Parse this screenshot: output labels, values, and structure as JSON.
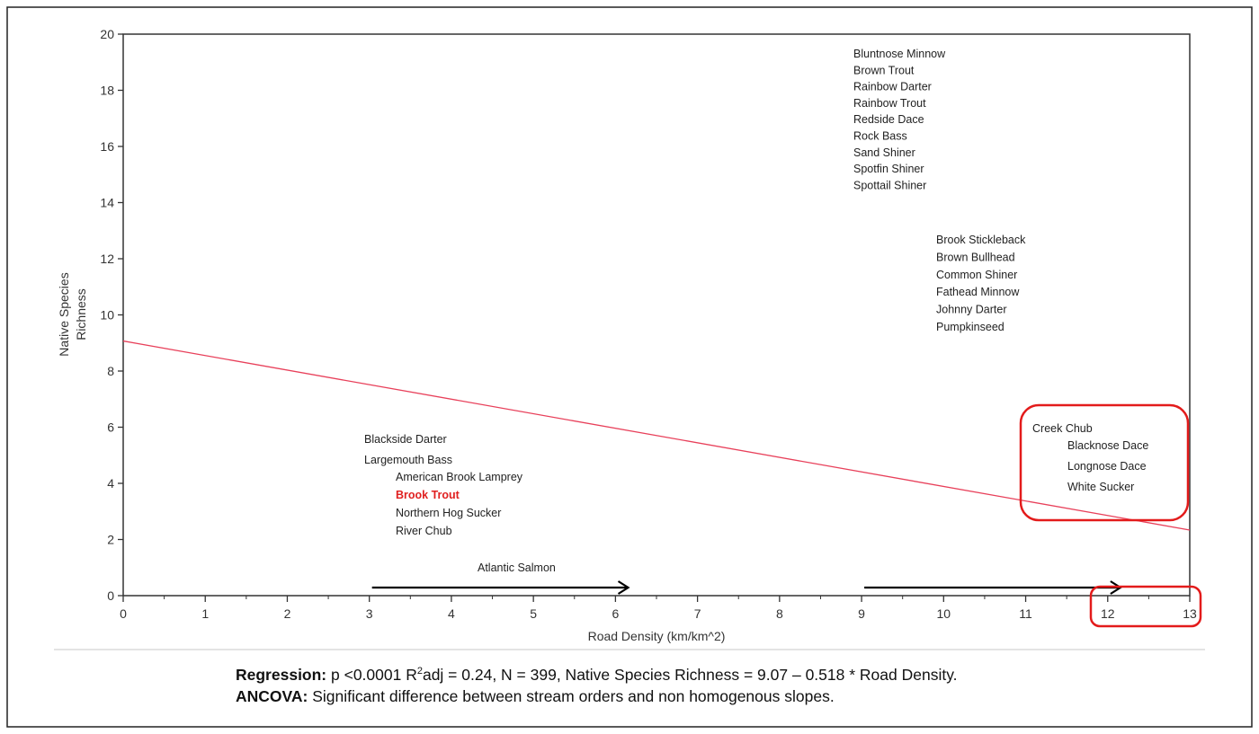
{
  "chart_data": {
    "type": "line",
    "xlabel": "Road Density (km/km^2)",
    "ylabel_lines": [
      "Native Species",
      "Richness"
    ],
    "xlim": [
      0,
      13
    ],
    "ylim": [
      0,
      20
    ],
    "x_ticks": [
      "0",
      "1",
      "2",
      "3",
      "4",
      "5",
      "6",
      "7",
      "8",
      "9",
      "10",
      "11",
      "12",
      "13"
    ],
    "y_ticks": [
      "0",
      "2",
      "4",
      "6",
      "8",
      "10",
      "12",
      "14",
      "16",
      "18",
      "20"
    ],
    "grid": false,
    "regression_line": {
      "intercept": 9.07,
      "slope": -0.518,
      "color": "#e8405a"
    },
    "annotations": {
      "group_high": [
        "Bluntnose Minnow",
        "Brown Trout",
        "Rainbow Darter",
        "Rainbow Trout",
        "Redside Dace",
        "Rock Bass",
        "Sand Shiner",
        "Spotfin Shiner",
        "Spottail Shiner"
      ],
      "group_mid": [
        "Brook Stickleback",
        "Brown Bullhead",
        "Common Shiner",
        "Fathead Minnow",
        "Johnny Darter",
        "Pumpkinseed"
      ],
      "group_low_a": [
        "Blackside Darter",
        "Largemouth Bass"
      ],
      "group_low_b": [
        "American Brook Lamprey",
        "Brook Trout",
        "Northern Hog Sucker",
        "River Chub"
      ],
      "highlighted": "Brook Trout",
      "highlight_color": "#e02020",
      "salmon": "Atlantic Salmon",
      "group_right_a": [
        "Creek Chub"
      ],
      "group_right_b": [
        "Blacknose Dace",
        "Longnose Dace",
        "White Sucker"
      ]
    },
    "arrows": [
      {
        "from": 3,
        "to": 6.1
      },
      {
        "from": 9,
        "to": 12.1
      }
    ],
    "highlight_box_color": "#e31b1b"
  },
  "caption": {
    "regression_label": "Regression:",
    "regression_pre": " p <0.0001 R",
    "regression_sup": "2",
    "regression_post": "adj = 0.24, N = 399, Native Species Richness = 9.07 – 0.518 * Road Density.",
    "ancova_label": "ANCOVA:",
    "ancova_text": " Significant difference between stream orders and non homogenous slopes."
  }
}
